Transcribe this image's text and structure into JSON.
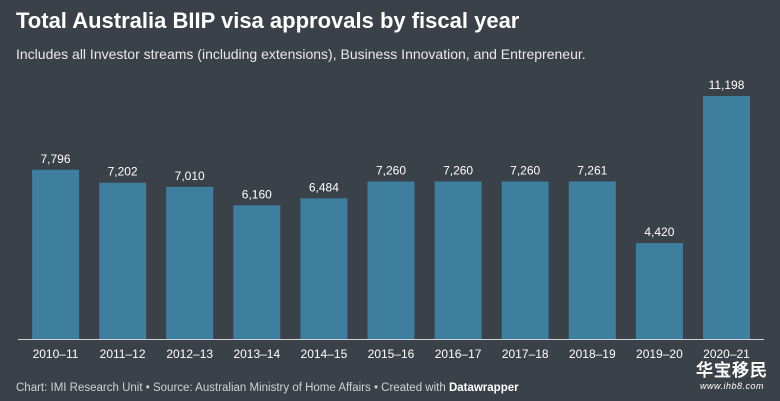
{
  "title": "Total Australia BIIP visa approvals by fiscal year",
  "subtitle": "Includes all Investor streams (including extensions), Business Innovation, and Entrepreneur.",
  "footer": {
    "chart_credit": "Chart: IMI Research Unit",
    "source": "Source: Australian Ministry of Home Affairs",
    "created_with": "Created with",
    "tool": "Datawrapper"
  },
  "watermark": {
    "logo_text": "华宝移民",
    "url": "www.ihb8.com"
  },
  "colors": {
    "background": "#3b4148",
    "bar": "#3e7f9f",
    "text": "#ffffff"
  },
  "chart_data": {
    "type": "bar",
    "title": "Total Australia BIIP visa approvals by fiscal year",
    "subtitle": "Includes all Investor streams (including extensions), Business Innovation, and Entrepreneur.",
    "categories": [
      "2010–11",
      "2011–12",
      "2012–13",
      "2013–14",
      "2014–15",
      "2015–16",
      "2016–17",
      "2017–18",
      "2018–19",
      "2019–20",
      "2020–21"
    ],
    "values": [
      7796,
      7202,
      7010,
      6160,
      6484,
      7260,
      7260,
      7260,
      7261,
      4420,
      11198
    ],
    "value_labels": [
      "7,796",
      "7,202",
      "7,010",
      "6,160",
      "6,484",
      "7,260",
      "7,260",
      "7,260",
      "7,261",
      "4,420",
      "11,198"
    ],
    "xlabel": "",
    "ylabel": "",
    "ylim": [
      0,
      11198
    ],
    "grid": false,
    "legend": "none"
  }
}
